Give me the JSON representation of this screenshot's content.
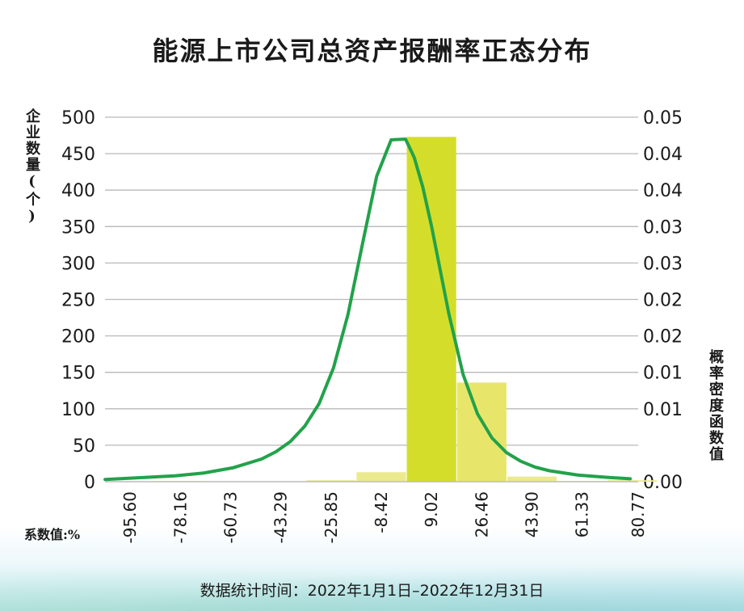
{
  "colors": {
    "bar_primary": "#d4de2a",
    "bar_secondary": "#e8e66a",
    "bar_light": "#ecea8e",
    "curve": "#22a24a",
    "grid": "#b9b9b9"
  },
  "chart_data": {
    "type": "bar",
    "title": "能源上市公司总资产报酬率正态分布",
    "ylabel": "企业数量(个)",
    "y2label": "概率密度函数值",
    "unit_label": "系数值:%",
    "footer": "数据统计时间：2022年1月1日–2022年12月31日",
    "ylim": [
      0,
      500
    ],
    "y_ticks": [
      0,
      50,
      100,
      150,
      200,
      250,
      300,
      350,
      400,
      450,
      500
    ],
    "y2lim": [
      0,
      0.05
    ],
    "y2_tick_labels": [
      "0.00",
      "0.01",
      "0.01",
      "0.02",
      "0.02",
      "0.03",
      "0.03",
      "0.04",
      "0.04",
      "0.05"
    ],
    "x_tick_labels": [
      "-95.60",
      "-78.16",
      "-60.73",
      "-43.29",
      "-25.85",
      "-8.42",
      "9.02",
      "26.46",
      "43.90",
      "61.33",
      "80.77"
    ],
    "x_range": [
      -104.32,
      80.77
    ],
    "bin_edges": [
      -104.32,
      -86.88,
      -69.45,
      -52.01,
      -34.57,
      -17.14,
      0.3,
      17.74,
      35.18,
      52.62,
      70.05,
      87.49
    ],
    "values": [
      0,
      1,
      0,
      0,
      2,
      13,
      473,
      136,
      7,
      1,
      2
    ],
    "grid": true,
    "legend": "none",
    "series": [
      {
        "type": "line",
        "axis": "right",
        "x": [
          -104.3,
          -90,
          -80,
          -70,
          -60,
          -50,
          -45,
          -40,
          -35,
          -30,
          -25,
          -20,
          -15,
          -10,
          -5,
          0,
          3,
          6,
          9,
          12,
          15,
          20,
          25,
          30,
          35,
          40,
          45,
          50,
          60,
          70,
          78
        ],
        "values": [
          0.0003,
          0.0006,
          0.0008,
          0.0012,
          0.0019,
          0.0031,
          0.0041,
          0.0055,
          0.0076,
          0.0107,
          0.0156,
          0.0229,
          0.0325,
          0.0419,
          0.0469,
          0.047,
          0.0445,
          0.0404,
          0.0351,
          0.0291,
          0.0231,
          0.0147,
          0.0093,
          0.006,
          0.004,
          0.0028,
          0.002,
          0.0015,
          0.0009,
          0.0006,
          0.0004
        ]
      }
    ]
  }
}
